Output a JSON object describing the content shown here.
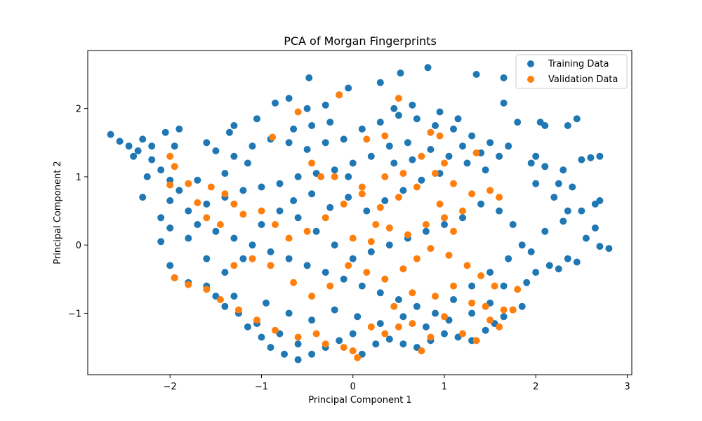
{
  "chart_data": {
    "type": "scatter",
    "title": "PCA of Morgan Fingerprints",
    "xlabel": "Principal Component 1",
    "ylabel": "Principal Component 2",
    "xlim": [
      -2.9,
      3.05
    ],
    "ylim": [
      -1.9,
      2.85
    ],
    "x_ticks": [
      -2,
      -1,
      0,
      1,
      2,
      3
    ],
    "y_ticks": [
      -1,
      0,
      1,
      2
    ],
    "grid": false,
    "legend_position": "top-right",
    "series": [
      {
        "name": "Training Data",
        "color": "#1f77b4",
        "points": [
          [
            -2.65,
            1.62
          ],
          [
            -2.55,
            1.52
          ],
          [
            -2.45,
            1.45
          ],
          [
            -2.35,
            1.38
          ],
          [
            -2.2,
            1.25
          ],
          [
            -2.1,
            1.1
          ],
          [
            -2.0,
            0.95
          ],
          [
            -1.9,
            0.8
          ],
          [
            -2.1,
            0.4
          ],
          [
            -2.0,
            0.25
          ],
          [
            -2.1,
            0.05
          ],
          [
            -2.0,
            -0.3
          ],
          [
            -1.95,
            -0.48
          ],
          [
            -1.8,
            -0.55
          ],
          [
            -1.6,
            -0.6
          ],
          [
            -1.5,
            -0.75
          ],
          [
            -1.4,
            -0.9
          ],
          [
            -1.25,
            -1.0
          ],
          [
            -1.15,
            -1.2
          ],
          [
            -1.0,
            -1.35
          ],
          [
            -0.9,
            -1.5
          ],
          [
            -0.75,
            -1.6
          ],
          [
            -0.6,
            -1.68
          ],
          [
            -0.45,
            -1.6
          ],
          [
            -0.3,
            -1.5
          ],
          [
            -0.15,
            -1.4
          ],
          [
            0.0,
            -1.3
          ],
          [
            0.1,
            -1.6
          ],
          [
            0.25,
            -1.45
          ],
          [
            0.4,
            -1.38
          ],
          [
            0.55,
            -1.45
          ],
          [
            0.7,
            -1.5
          ],
          [
            0.85,
            -1.4
          ],
          [
            1.0,
            -1.3
          ],
          [
            1.15,
            -1.35
          ],
          [
            1.3,
            -1.4
          ],
          [
            1.45,
            -1.25
          ],
          [
            1.55,
            -1.15
          ],
          [
            1.65,
            -1.05
          ],
          [
            1.75,
            -0.95
          ],
          [
            1.85,
            -0.9
          ],
          [
            1.9,
            -0.55
          ],
          [
            2.0,
            -0.4
          ],
          [
            2.15,
            -0.3
          ],
          [
            2.25,
            -0.35
          ],
          [
            2.35,
            -0.2
          ],
          [
            2.45,
            -0.25
          ],
          [
            2.55,
            0.1
          ],
          [
            2.65,
            0.25
          ],
          [
            2.7,
            -0.02
          ],
          [
            2.8,
            -0.05
          ],
          [
            2.65,
            0.6
          ],
          [
            2.7,
            0.65
          ],
          [
            2.5,
            0.5
          ],
          [
            2.35,
            0.5
          ],
          [
            2.2,
            0.7
          ],
          [
            2.0,
            0.9
          ],
          [
            1.95,
            1.2
          ],
          [
            2.0,
            1.3
          ],
          [
            2.1,
            1.15
          ],
          [
            2.3,
            1.1
          ],
          [
            2.5,
            1.25
          ],
          [
            2.6,
            1.28
          ],
          [
            2.7,
            1.3
          ],
          [
            2.35,
            1.75
          ],
          [
            2.45,
            1.85
          ],
          [
            2.05,
            1.8
          ],
          [
            2.1,
            1.75
          ],
          [
            1.8,
            1.8
          ],
          [
            1.7,
            1.45
          ],
          [
            1.65,
            2.08
          ],
          [
            1.65,
            2.45
          ],
          [
            1.35,
            2.5
          ],
          [
            0.82,
            2.6
          ],
          [
            0.52,
            2.52
          ],
          [
            0.3,
            2.38
          ],
          [
            -0.05,
            2.3
          ],
          [
            -0.15,
            2.2
          ],
          [
            -0.3,
            2.05
          ],
          [
            -0.5,
            2.0
          ],
          [
            -0.48,
            2.45
          ],
          [
            -0.7,
            2.15
          ],
          [
            -0.85,
            2.08
          ],
          [
            -1.05,
            1.85
          ],
          [
            -1.3,
            1.75
          ],
          [
            -1.35,
            1.65
          ],
          [
            -1.6,
            1.5
          ],
          [
            -1.5,
            1.38
          ],
          [
            -1.3,
            1.3
          ],
          [
            -1.1,
            1.45
          ],
          [
            -0.9,
            1.55
          ],
          [
            -0.7,
            1.5
          ],
          [
            -0.5,
            1.4
          ],
          [
            -0.3,
            1.5
          ],
          [
            -0.1,
            1.55
          ],
          [
            0.1,
            1.7
          ],
          [
            0.3,
            1.8
          ],
          [
            0.5,
            1.9
          ],
          [
            0.7,
            1.85
          ],
          [
            0.9,
            1.75
          ],
          [
            1.1,
            1.7
          ],
          [
            1.3,
            1.6
          ],
          [
            1.5,
            1.5
          ],
          [
            1.6,
            1.3
          ],
          [
            1.45,
            1.1
          ],
          [
            1.25,
            1.2
          ],
          [
            1.05,
            1.3
          ],
          [
            0.85,
            1.4
          ],
          [
            0.6,
            1.5
          ],
          [
            0.4,
            1.45
          ],
          [
            0.2,
            1.3
          ],
          [
            0.0,
            1.2
          ],
          [
            -0.2,
            1.1
          ],
          [
            -0.4,
            1.05
          ],
          [
            -0.6,
            1.0
          ],
          [
            -0.8,
            0.9
          ],
          [
            -1.0,
            0.85
          ],
          [
            -1.2,
            0.8
          ],
          [
            -1.4,
            0.7
          ],
          [
            -1.6,
            0.6
          ],
          [
            -1.8,
            0.5
          ],
          [
            -1.7,
            0.3
          ],
          [
            -1.5,
            0.2
          ],
          [
            -1.3,
            0.1
          ],
          [
            -1.1,
            0.0
          ],
          [
            -0.9,
            -0.1
          ],
          [
            -0.7,
            -0.2
          ],
          [
            -0.5,
            -0.3
          ],
          [
            -0.3,
            -0.4
          ],
          [
            -0.1,
            -0.5
          ],
          [
            0.1,
            -0.6
          ],
          [
            0.3,
            -0.7
          ],
          [
            0.5,
            -0.8
          ],
          [
            0.7,
            -0.9
          ],
          [
            0.9,
            -1.0
          ],
          [
            1.1,
            -0.8
          ],
          [
            1.3,
            -0.6
          ],
          [
            1.5,
            -0.4
          ],
          [
            1.7,
            -0.2
          ],
          [
            1.85,
            0.0
          ],
          [
            1.75,
            0.3
          ],
          [
            1.6,
            0.5
          ],
          [
            1.4,
            0.6
          ],
          [
            1.2,
            0.4
          ],
          [
            1.0,
            0.3
          ],
          [
            0.8,
            0.2
          ],
          [
            0.6,
            0.1
          ],
          [
            0.4,
            0.0
          ],
          [
            0.2,
            -0.1
          ],
          [
            0.0,
            -0.2
          ],
          [
            -0.2,
            0.0
          ],
          [
            -0.4,
            0.2
          ],
          [
            -0.6,
            0.4
          ],
          [
            -0.8,
            0.5
          ],
          [
            -1.0,
            0.3
          ],
          [
            -1.2,
            -0.2
          ],
          [
            -1.4,
            -0.4
          ],
          [
            -1.6,
            -0.2
          ],
          [
            -1.8,
            0.1
          ],
          [
            -2.2,
            1.45
          ],
          [
            -2.3,
            1.55
          ],
          [
            -2.4,
            1.3
          ],
          [
            -2.25,
            1.0
          ],
          [
            -1.9,
            1.7
          ],
          [
            -2.05,
            1.65
          ],
          [
            -1.95,
            1.45
          ],
          [
            -0.95,
            -0.85
          ],
          [
            -0.7,
            -1.0
          ],
          [
            -0.45,
            -1.1
          ],
          [
            -0.2,
            -0.95
          ],
          [
            0.05,
            -1.05
          ],
          [
            0.3,
            -1.15
          ],
          [
            0.55,
            -1.05
          ],
          [
            0.8,
            -1.2
          ],
          [
            1.05,
            -1.1
          ],
          [
            1.3,
            -1.0
          ],
          [
            1.5,
            -0.85
          ],
          [
            1.65,
            -0.6
          ],
          [
            0.15,
            0.5
          ],
          [
            0.35,
            0.65
          ],
          [
            0.55,
            0.8
          ],
          [
            0.75,
            0.95
          ],
          [
            0.95,
            1.05
          ],
          [
            -0.05,
            0.7
          ],
          [
            -0.25,
            0.55
          ],
          [
            -0.45,
            0.75
          ],
          [
            -0.65,
            0.65
          ],
          [
            0.45,
            2.0
          ],
          [
            0.65,
            2.05
          ],
          [
            0.95,
            1.95
          ],
          [
            1.15,
            1.85
          ],
          [
            -0.25,
            1.8
          ],
          [
            -0.45,
            1.75
          ],
          [
            -0.65,
            1.7
          ],
          [
            -1.15,
            1.2
          ],
          [
            -1.4,
            1.05
          ],
          [
            -1.7,
            0.95
          ],
          [
            -2.0,
            0.65
          ],
          [
            -2.3,
            0.7
          ],
          [
            2.25,
            0.9
          ],
          [
            2.4,
            0.85
          ],
          [
            2.1,
            0.2
          ],
          [
            2.3,
            0.35
          ],
          [
            1.95,
            -0.1
          ],
          [
            -0.6,
            -1.45
          ],
          [
            -0.8,
            -1.3
          ],
          [
            -1.05,
            -1.15
          ],
          [
            -1.3,
            -0.75
          ],
          [
            0.45,
            1.2
          ],
          [
            0.65,
            1.25
          ],
          [
            -0.05,
            1.0
          ],
          [
            1.2,
            1.45
          ],
          [
            1.4,
            1.35
          ]
        ]
      },
      {
        "name": "Validation Data",
        "color": "#ff7f0e",
        "points": [
          [
            -0.6,
            1.95
          ],
          [
            -0.88,
            1.58
          ],
          [
            -0.15,
            2.2
          ],
          [
            0.5,
            2.15
          ],
          [
            0.85,
            1.65
          ],
          [
            0.35,
            1.6
          ],
          [
            0.15,
            1.55
          ],
          [
            0.95,
            1.6
          ],
          [
            -2.0,
            1.3
          ],
          [
            -1.95,
            1.15
          ],
          [
            -2.0,
            0.88
          ],
          [
            -1.8,
            0.9
          ],
          [
            -1.7,
            0.62
          ],
          [
            -1.55,
            0.85
          ],
          [
            -1.4,
            0.75
          ],
          [
            -1.3,
            0.6
          ],
          [
            -1.2,
            0.45
          ],
          [
            -1.0,
            0.5
          ],
          [
            -0.85,
            0.3
          ],
          [
            -0.7,
            0.1
          ],
          [
            -1.1,
            -0.2
          ],
          [
            -1.3,
            -0.3
          ],
          [
            -1.95,
            -0.48
          ],
          [
            -1.8,
            -0.58
          ],
          [
            -1.6,
            -0.65
          ],
          [
            -1.45,
            -0.8
          ],
          [
            -1.25,
            -0.95
          ],
          [
            -1.05,
            -1.1
          ],
          [
            -0.85,
            -1.25
          ],
          [
            -0.6,
            -1.35
          ],
          [
            -0.4,
            -1.3
          ],
          [
            -0.3,
            -1.45
          ],
          [
            -0.1,
            -1.5
          ],
          [
            0.0,
            -1.55
          ],
          [
            0.05,
            -1.65
          ],
          [
            0.2,
            -1.2
          ],
          [
            0.35,
            -1.3
          ],
          [
            0.5,
            -1.2
          ],
          [
            0.65,
            -1.15
          ],
          [
            0.85,
            -1.35
          ],
          [
            0.75,
            -1.55
          ],
          [
            1.0,
            -1.05
          ],
          [
            1.2,
            -1.3
          ],
          [
            1.35,
            -1.4
          ],
          [
            1.5,
            -1.1
          ],
          [
            1.6,
            -1.2
          ],
          [
            1.65,
            -0.95
          ],
          [
            1.55,
            -0.6
          ],
          [
            1.4,
            -0.45
          ],
          [
            1.25,
            -0.3
          ],
          [
            1.05,
            -0.15
          ],
          [
            0.85,
            -0.05
          ],
          [
            0.7,
            -0.2
          ],
          [
            0.55,
            -0.35
          ],
          [
            0.35,
            -0.5
          ],
          [
            0.15,
            -0.4
          ],
          [
            -0.05,
            -0.3
          ],
          [
            -0.25,
            -0.6
          ],
          [
            -0.45,
            -0.75
          ],
          [
            -0.65,
            -0.55
          ],
          [
            -0.5,
            0.2
          ],
          [
            -0.3,
            0.4
          ],
          [
            -0.1,
            0.6
          ],
          [
            0.1,
            0.75
          ],
          [
            0.3,
            0.55
          ],
          [
            0.5,
            0.7
          ],
          [
            0.7,
            0.85
          ],
          [
            0.9,
            1.05
          ],
          [
            1.1,
            0.9
          ],
          [
            1.3,
            0.75
          ],
          [
            1.5,
            0.8
          ],
          [
            1.6,
            0.7
          ],
          [
            1.2,
            0.5
          ],
          [
            1.0,
            0.4
          ],
          [
            0.8,
            0.3
          ],
          [
            0.6,
            0.15
          ],
          [
            0.4,
            0.25
          ],
          [
            0.2,
            0.05
          ],
          [
            0.0,
            0.1
          ],
          [
            -0.2,
            1.0
          ],
          [
            -0.45,
            1.2
          ],
          [
            0.1,
            0.85
          ],
          [
            0.35,
            1.0
          ],
          [
            0.55,
            1.05
          ],
          [
            0.75,
            1.3
          ],
          [
            1.0,
            1.2
          ],
          [
            1.35,
            1.35
          ],
          [
            0.9,
            -0.75
          ],
          [
            1.1,
            -0.6
          ],
          [
            1.3,
            -0.85
          ],
          [
            1.45,
            -0.9
          ],
          [
            0.65,
            -0.7
          ],
          [
            0.45,
            -0.9
          ],
          [
            1.8,
            -0.65
          ],
          [
            1.75,
            -0.95
          ],
          [
            1.1,
            0.2
          ],
          [
            -0.9,
            -0.3
          ],
          [
            -1.45,
            0.3
          ],
          [
            -1.6,
            0.4
          ],
          [
            -0.35,
            1.0
          ],
          [
            0.25,
            0.3
          ],
          [
            0.95,
            0.6
          ]
        ]
      }
    ]
  }
}
